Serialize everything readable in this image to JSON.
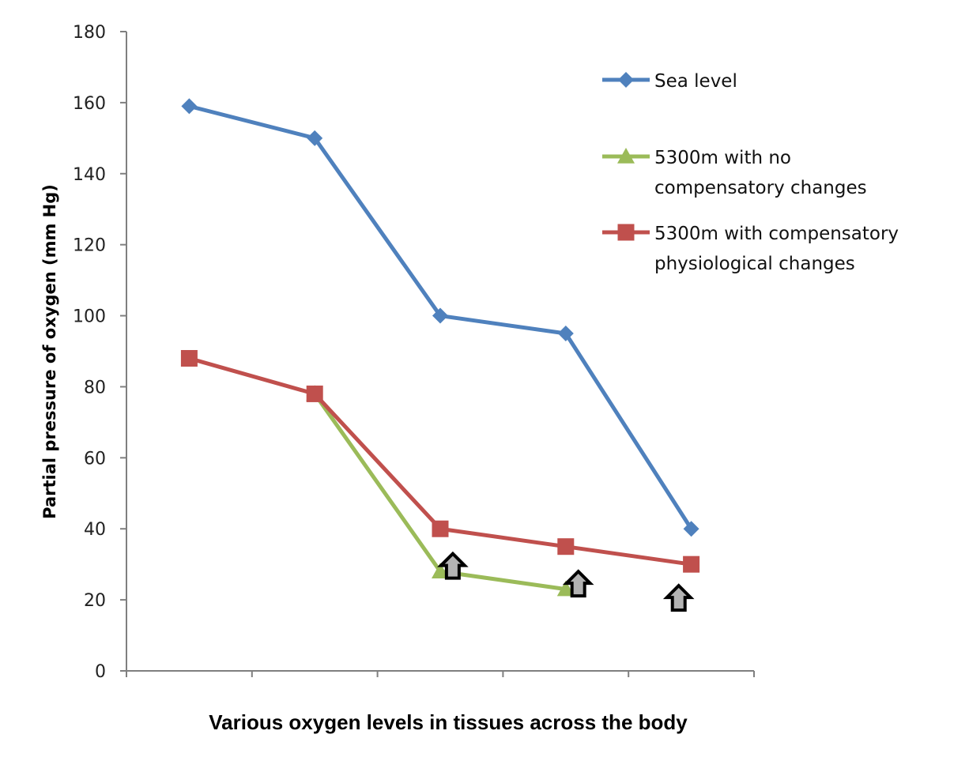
{
  "chart_data": {
    "type": "line",
    "title": "",
    "xlabel": "Various oxygen levels in tissues across the body",
    "ylabel": "Partial pressure of oxygen (mm Hg)",
    "ylim": [
      0,
      180
    ],
    "yticks": [
      0,
      20,
      40,
      60,
      80,
      100,
      120,
      140,
      160,
      180
    ],
    "x_categories": 5,
    "grid": false,
    "legend_position": "top-right",
    "series": [
      {
        "name": "Sea level",
        "legend_lines": [
          "Sea level"
        ],
        "marker": "diamond",
        "color": "#4F81BD",
        "points": [
          [
            1,
            159
          ],
          [
            2,
            150
          ],
          [
            3,
            100
          ],
          [
            4,
            95
          ],
          [
            5,
            40
          ]
        ]
      },
      {
        "name": "5300m with no compensatory changes",
        "legend_lines": [
          "5300m with no",
          "compensatory changes"
        ],
        "marker": "triangle",
        "color": "#9BBB59",
        "points": [
          [
            2,
            78
          ],
          [
            3,
            28
          ],
          [
            4,
            23
          ]
        ]
      },
      {
        "name": "5300m with compensatory physiological changes",
        "legend_lines": [
          "5300m with compensatory",
          "physiological changes"
        ],
        "marker": "square",
        "color": "#C0504D",
        "points": [
          [
            1,
            88
          ],
          [
            2,
            78
          ],
          [
            3,
            40
          ],
          [
            4,
            35
          ],
          [
            5,
            30
          ]
        ]
      }
    ],
    "annotations": [
      {
        "type": "up-arrow",
        "x": 3.1,
        "y": 33
      },
      {
        "type": "up-arrow",
        "x": 4.1,
        "y": 28
      },
      {
        "type": "up-arrow",
        "x": 4.9,
        "y": 24
      }
    ]
  }
}
